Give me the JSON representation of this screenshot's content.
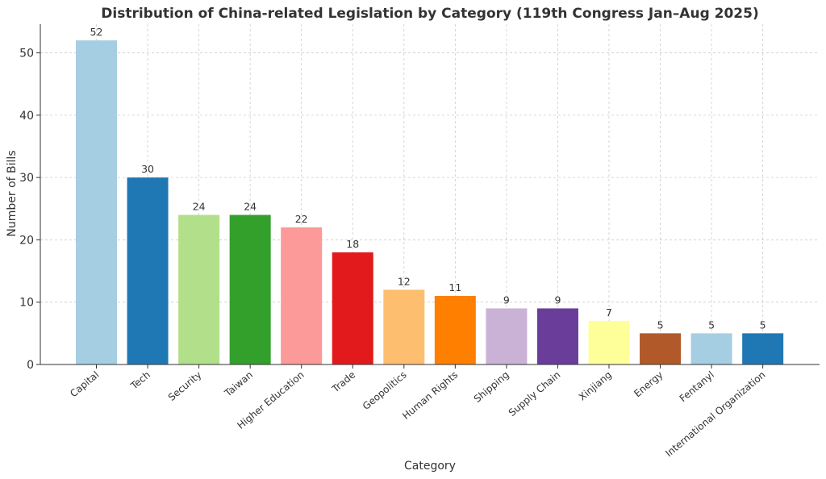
{
  "chart_data": {
    "type": "bar",
    "title": "Distribution of China-related Legislation by Category (119th Congress Jan–Aug 2025)",
    "xlabel": "Category",
    "ylabel": "Number of Bills",
    "ylim": [
      0,
      54.6
    ],
    "yticks": [
      0,
      10,
      20,
      30,
      40,
      50
    ],
    "grid": true,
    "categories": [
      "Capital",
      "Tech",
      "Security",
      "Taiwan",
      "Higher Education",
      "Trade",
      "Geopolitics",
      "Human Rights",
      "Shipping",
      "Supply Chain",
      "Xinjiang",
      "Energy",
      "Fentanyl",
      "International Organization"
    ],
    "values": [
      52,
      30,
      24,
      24,
      22,
      18,
      12,
      11,
      9,
      9,
      7,
      5,
      5,
      5
    ],
    "data_labels": [
      "52",
      "30",
      "24",
      "24",
      "22",
      "18",
      "12",
      "11",
      "9",
      "9",
      "7",
      "5",
      "5",
      "5"
    ],
    "colors": [
      "#a6cee3",
      "#1f78b4",
      "#b2df8a",
      "#33a02c",
      "#fb9a99",
      "#e31a1c",
      "#fdbf6f",
      "#ff7f00",
      "#cab2d6",
      "#6a3d9a",
      "#ffff99",
      "#b15928",
      "#a6cee3",
      "#1f78b4"
    ]
  }
}
